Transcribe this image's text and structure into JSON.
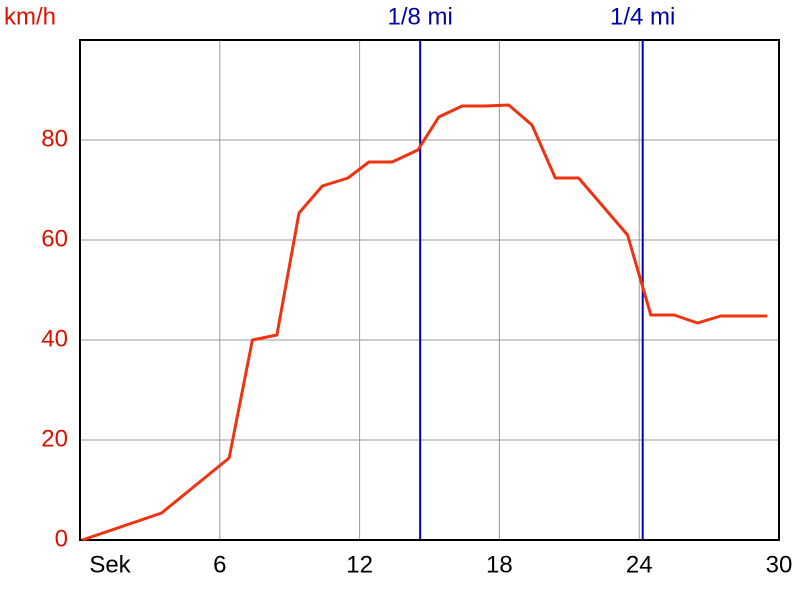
{
  "chart_data": {
    "type": "line",
    "y_label": "km/h",
    "x": [
      0.1,
      3.5,
      6.4,
      7.4,
      8.45,
      9.4,
      10.4,
      11.5,
      12.4,
      13.4,
      14.5,
      15.4,
      16.4,
      17.4,
      18.4,
      19.4,
      20.4,
      21.4,
      23.5,
      24.5,
      25.5,
      26.5,
      27.5,
      29.5
    ],
    "series": [
      {
        "color": "#ee3311",
        "values": [
          0,
          5.4,
          16.4,
          40,
          41,
          65.4,
          70.8,
          72.4,
          75.6,
          75.6,
          78,
          84.6,
          86.8,
          86.8,
          87,
          83,
          72.4,
          72.4,
          61,
          45,
          45,
          43.4,
          44.8,
          44.8
        ]
      }
    ],
    "xlim": [
      0,
      30
    ],
    "xticks": [
      {
        "value": 0,
        "label": "Sek"
      },
      6,
      12,
      18,
      24,
      30
    ],
    "ylim": [
      0,
      100
    ],
    "yticks": [
      0,
      20,
      40,
      60,
      80
    ],
    "grid": true,
    "y_tick_color": "#dd1100",
    "x_tick_color": "#000000",
    "markers": [
      {
        "label": "1/8 mi",
        "x": 14.6
      },
      {
        "label": "1/4 mi",
        "x": 24.15
      }
    ],
    "marker_color": "#0000aa"
  }
}
